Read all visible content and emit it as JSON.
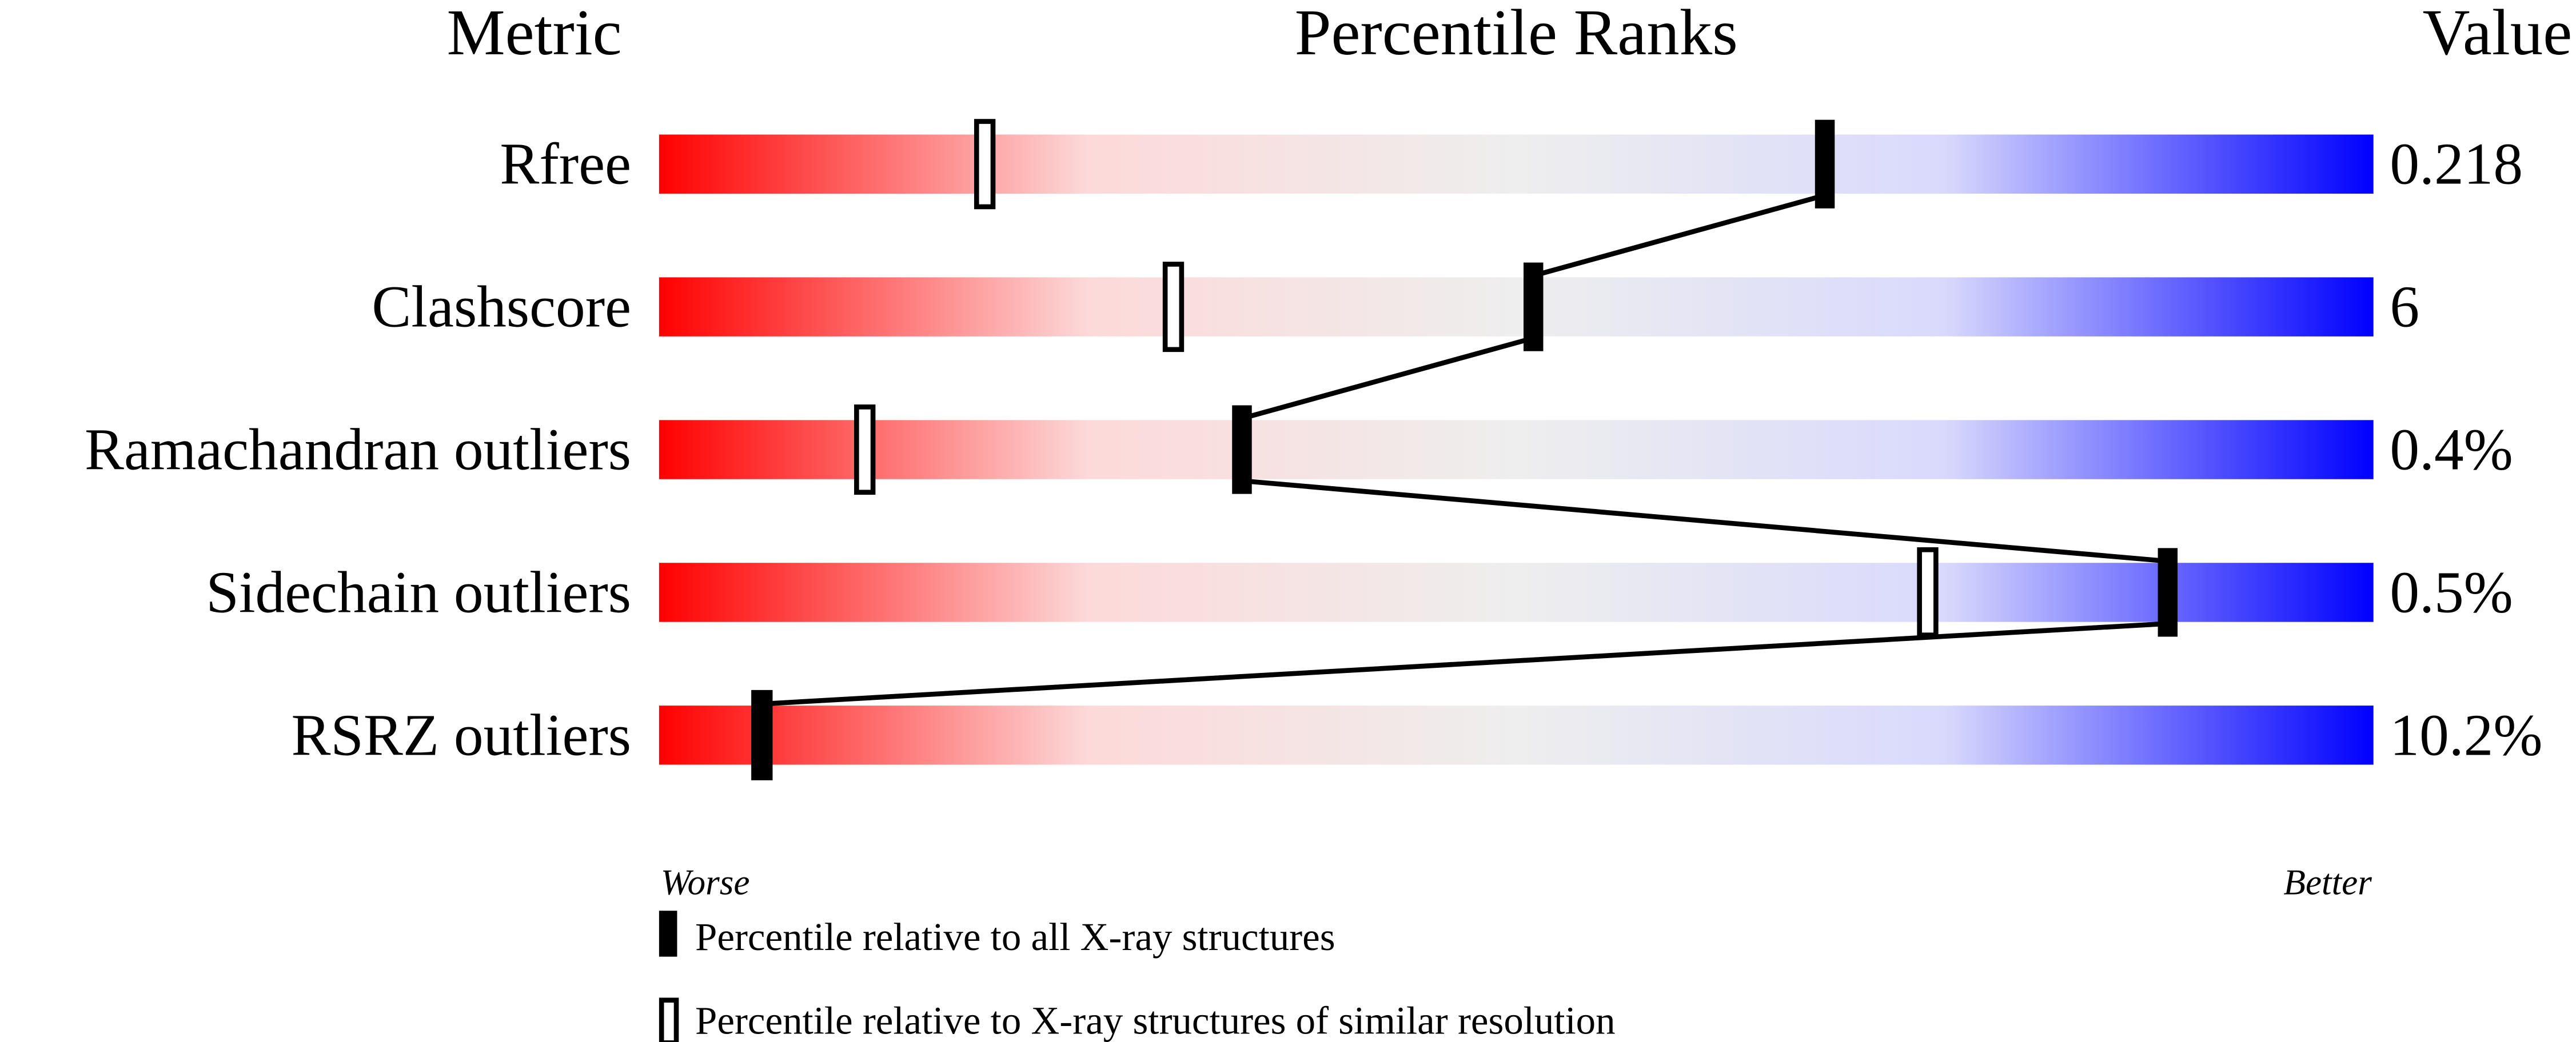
{
  "chart_data": {
    "type": "percentile-slider",
    "headers": {
      "metric": "Metric",
      "ranks": "Percentile Ranks",
      "value": "Value"
    },
    "xlim": [
      0,
      100
    ],
    "axis_labels": {
      "left": "Worse",
      "right": "Better"
    },
    "gradient_colors": [
      "#ff0000",
      "#fdd9d9",
      "#eeeeee",
      "#d9d9fd",
      "#0000ff"
    ],
    "metrics": [
      {
        "name": "Rfree",
        "value": "0.218",
        "percentile_all": 68,
        "percentile_similar": 19
      },
      {
        "name": "Clashscore",
        "value": "6",
        "percentile_all": 51,
        "percentile_similar": 30
      },
      {
        "name": "Ramachandran outliers",
        "value": "0.4%",
        "percentile_all": 34,
        "percentile_similar": 12
      },
      {
        "name": "Sidechain outliers",
        "value": "0.5%",
        "percentile_all": 88,
        "percentile_similar": 74
      },
      {
        "name": "RSRZ outliers",
        "value": "10.2%",
        "percentile_all": 6,
        "percentile_similar": 6
      }
    ],
    "legend": [
      {
        "marker": "filled",
        "label": "Percentile relative to all X-ray structures"
      },
      {
        "marker": "open",
        "label": "Percentile relative to X-ray structures of similar resolution"
      }
    ]
  }
}
